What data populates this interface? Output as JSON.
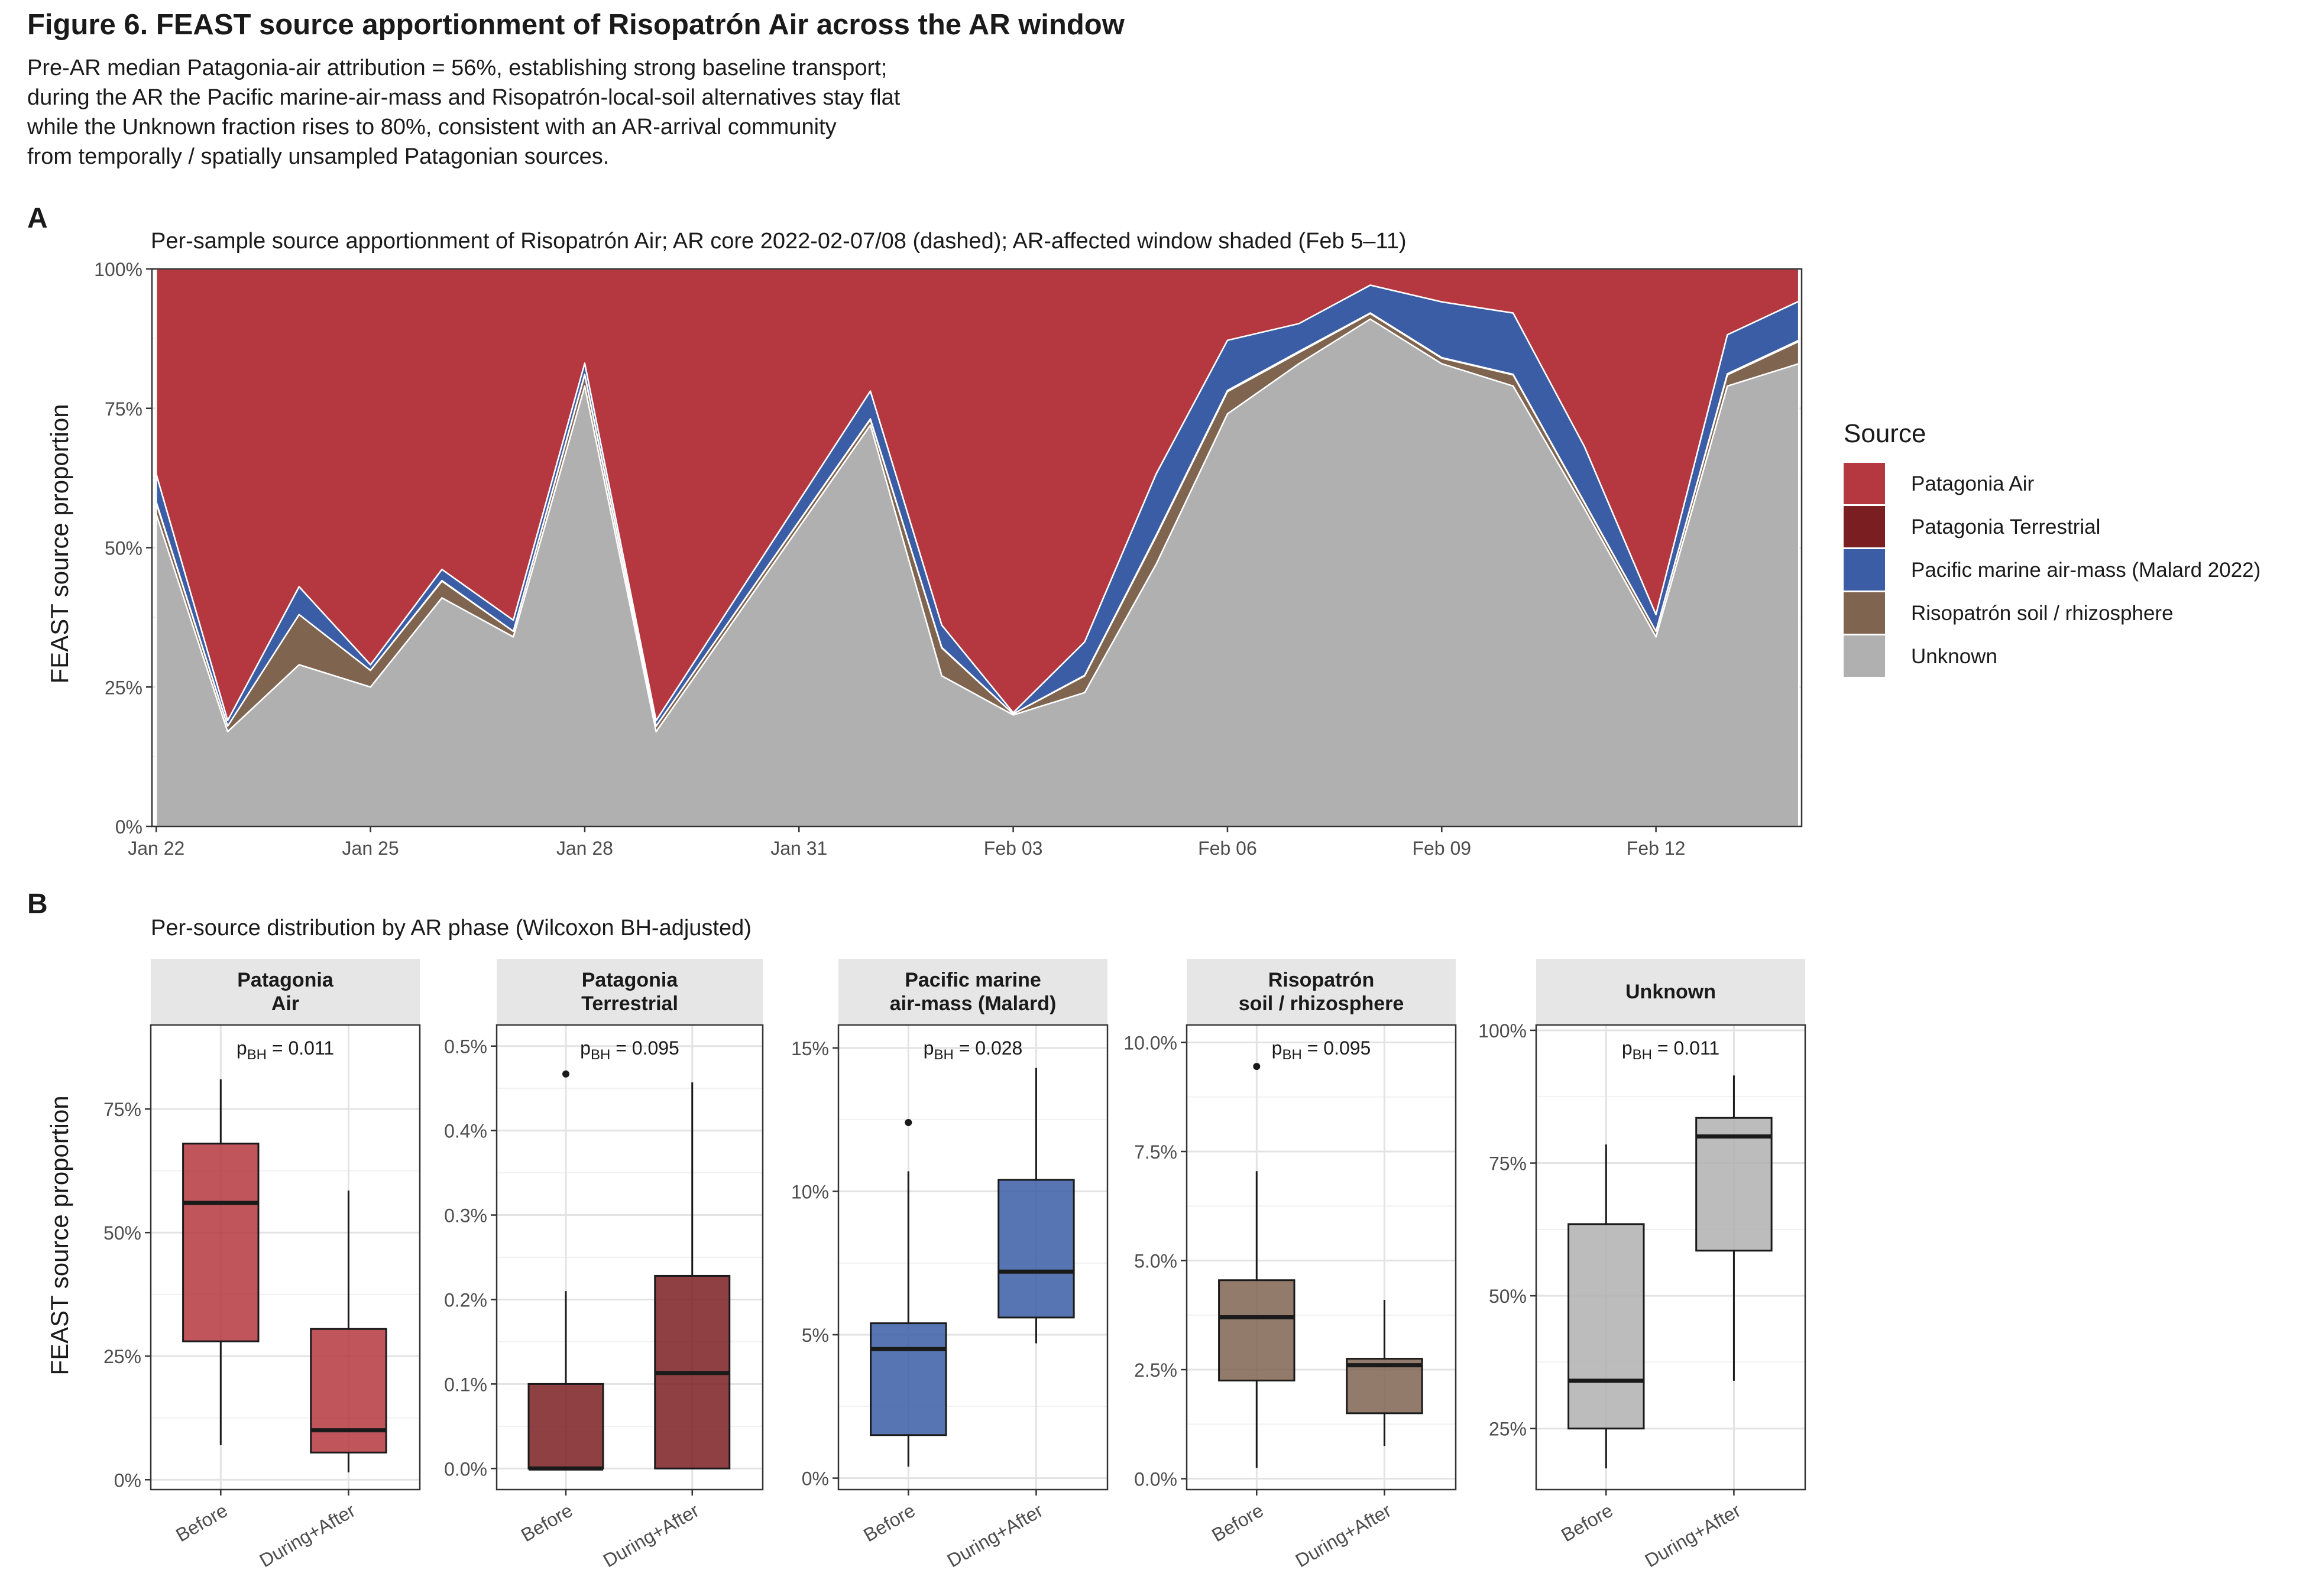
{
  "figure": {
    "title": "Figure 6. FEAST source apportionment of Risopatrón Air across the AR window",
    "caption_lines": [
      "Pre-AR median Patagonia-air attribution = 56%, establishing strong baseline transport;",
      "during the AR the Pacific marine-air-mass and Risopatrón-local-soil alternatives stay flat",
      "while the Unknown fraction rises to 80%, consistent with an AR-arrival community",
      "from temporally / spatially unsampled Patagonian sources."
    ]
  },
  "panel_a": {
    "letter": "A",
    "subtitle": "Per-sample source apportionment of Risopatrón Air; AR core 2022-02-07/08 (dashed); AR-affected window shaded (Feb 5–11)",
    "ylabel": "FEAST source proportion"
  },
  "panel_b": {
    "letter": "B",
    "subtitle": "Per-source distribution by AR phase (Wilcoxon BH-adjusted)",
    "ylabel": "FEAST source proportion"
  },
  "legend": {
    "title": "Source",
    "position": "right",
    "items": [
      {
        "label": "Patagonia Air",
        "color": "#B5373F"
      },
      {
        "label": "Patagonia Terrestrial",
        "color": "#7B1E22"
      },
      {
        "label": "Pacific marine air-mass (Malard 2022)",
        "color": "#3A5DA5"
      },
      {
        "label": "Risopatrón soil / rhizosphere",
        "color": "#7F6450"
      },
      {
        "label": "Unknown",
        "color": "#B0B0B0"
      }
    ]
  },
  "chart_data": [
    {
      "type": "area",
      "stacked": true,
      "x_tick_labels": [
        "Jan 22",
        "Jan 25",
        "Jan 28",
        "Jan 31",
        "Feb 03",
        "Feb 06",
        "Feb 09",
        "Feb 12"
      ],
      "x_tick_dates": [
        "2022-01-22",
        "2022-01-25",
        "2022-01-28",
        "2022-01-31",
        "2022-02-03",
        "2022-02-06",
        "2022-02-09",
        "2022-02-12"
      ],
      "xlim": [
        "2022-01-22",
        "2022-02-14"
      ],
      "x": [
        "2022-01-22",
        "2022-01-23",
        "2022-01-24",
        "2022-01-25",
        "2022-01-26",
        "2022-01-27",
        "2022-01-28",
        "2022-01-29",
        "2022-02-01",
        "2022-02-02",
        "2022-02-03",
        "2022-02-04",
        "2022-02-05",
        "2022-02-06",
        "2022-02-07",
        "2022-02-08",
        "2022-02-09",
        "2022-02-10",
        "2022-02-11",
        "2022-02-12",
        "2022-02-13",
        "2022-02-14"
      ],
      "ylim": [
        0,
        1
      ],
      "y_tick_labels": [
        "0%",
        "25%",
        "50%",
        "75%",
        "100%"
      ],
      "y_ticks": [
        0,
        0.25,
        0.5,
        0.75,
        1.0
      ],
      "grid": true,
      "series": [
        {
          "name": "Unknown",
          "color": "#B0B0B0",
          "values": [
            0.56,
            0.17,
            0.29,
            0.25,
            0.41,
            0.34,
            0.79,
            0.17,
            0.72,
            0.27,
            0.2,
            0.24,
            0.47,
            0.74,
            0.83,
            0.91,
            0.83,
            0.79,
            0.57,
            0.34,
            0.79,
            0.83
          ]
        },
        {
          "name": "Risopatrón soil / rhizosphere",
          "color": "#7F6450",
          "values": [
            0.02,
            0.01,
            0.09,
            0.03,
            0.03,
            0.01,
            0.02,
            0.01,
            0.01,
            0.05,
            0.002,
            0.03,
            0.05,
            0.04,
            0.02,
            0.01,
            0.01,
            0.02,
            0.01,
            0.01,
            0.02,
            0.04
          ]
        },
        {
          "name": "Patagonia Terrestrial",
          "color": "#7B1E22",
          "values": [
            0.002,
            0.0,
            0.0,
            0.0,
            0.001,
            0.0,
            0.001,
            0.0,
            0.001,
            0.001,
            0.0,
            0.001,
            0.002,
            0.002,
            0.002,
            0.001,
            0.001,
            0.001,
            0.001,
            0.0,
            0.002,
            0.002
          ]
        },
        {
          "name": "Pacific marine air-mass (Malard 2022)",
          "color": "#3A5DA5",
          "values": [
            0.05,
            0.01,
            0.05,
            0.01,
            0.02,
            0.02,
            0.02,
            0.01,
            0.05,
            0.04,
            0.002,
            0.06,
            0.11,
            0.09,
            0.05,
            0.05,
            0.1,
            0.11,
            0.1,
            0.03,
            0.07,
            0.07
          ]
        },
        {
          "name": "Patagonia Air",
          "color": "#B5373F",
          "values": [
            0.368,
            0.81,
            0.57,
            0.71,
            0.539,
            0.63,
            0.169,
            0.81,
            0.219,
            0.639,
            0.796,
            0.669,
            0.368,
            0.128,
            0.098,
            0.029,
            0.059,
            0.079,
            0.319,
            0.62,
            0.118,
            0.058
          ]
        }
      ]
    },
    {
      "type": "box",
      "name": "Patagonia\nAir",
      "facet_lines": [
        "Patagonia",
        "Air"
      ],
      "color": "#B5373F",
      "ylim": [
        -0.02,
        0.92
      ],
      "y_ticks": [
        0,
        0.25,
        0.5,
        0.75
      ],
      "y_tick_labels": [
        "0%",
        "25%",
        "50%",
        "75%"
      ],
      "categories": [
        "Before",
        "During+After"
      ],
      "boxes": [
        {
          "whisker_low": 0.07,
          "q1": 0.28,
          "median": 0.56,
          "q3": 0.68,
          "whisker_high": 0.81,
          "outliers": []
        },
        {
          "whisker_low": 0.015,
          "q1": 0.055,
          "median": 0.1,
          "q3": 0.305,
          "whisker_high": 0.585,
          "outliers": []
        }
      ],
      "p_label": "p",
      "p_sub": "BH",
      "p_value": "= 0.011"
    },
    {
      "type": "box",
      "name": "Patagonia\nTerrestrial",
      "facet_lines": [
        "Patagonia",
        "Terrestrial"
      ],
      "color": "#7B1E22",
      "ylim": [
        -0.00025,
        0.00525
      ],
      "y_ticks": [
        0,
        0.001,
        0.002,
        0.003,
        0.004,
        0.005
      ],
      "y_tick_labels": [
        "0.0%",
        "0.1%",
        "0.2%",
        "0.3%",
        "0.4%",
        "0.5%"
      ],
      "categories": [
        "Before",
        "During+After"
      ],
      "boxes": [
        {
          "whisker_low": 0.0,
          "q1": 0.0,
          "median": 0.0,
          "q3": 0.001,
          "whisker_high": 0.0021,
          "outliers": [
            0.00467
          ]
        },
        {
          "whisker_low": 0.0,
          "q1": 0.0,
          "median": 0.00113,
          "q3": 0.00228,
          "whisker_high": 0.00457,
          "outliers": []
        }
      ],
      "p_label": "p",
      "p_sub": "BH",
      "p_value": "= 0.095"
    },
    {
      "type": "box",
      "name": "Pacific marine\nair-mass (Malard)",
      "facet_lines": [
        "Pacific marine",
        "air-mass (Malard)"
      ],
      "color": "#3A5DA5",
      "ylim": [
        -0.004,
        0.158
      ],
      "y_ticks": [
        0,
        0.05,
        0.1,
        0.15
      ],
      "y_tick_labels": [
        "0%",
        "5%",
        "10%",
        "15%"
      ],
      "categories": [
        "Before",
        "During+After"
      ],
      "boxes": [
        {
          "whisker_low": 0.004,
          "q1": 0.015,
          "median": 0.045,
          "q3": 0.054,
          "whisker_high": 0.107,
          "outliers": [
            0.124
          ]
        },
        {
          "whisker_low": 0.047,
          "q1": 0.056,
          "median": 0.072,
          "q3": 0.104,
          "whisker_high": 0.143,
          "outliers": []
        }
      ],
      "p_label": "p",
      "p_sub": "BH",
      "p_value": "= 0.028"
    },
    {
      "type": "box",
      "name": "Risopatrón\nsoil / rhizosphere",
      "facet_lines": [
        "Risopatrón",
        "soil / rhizosphere"
      ],
      "color": "#7F6450",
      "ylim": [
        -0.0025,
        0.104
      ],
      "y_ticks": [
        0,
        0.025,
        0.05,
        0.075,
        0.1
      ],
      "y_tick_labels": [
        "0.0%",
        "2.5%",
        "5.0%",
        "7.5%",
        "10.0%"
      ],
      "categories": [
        "Before",
        "During+After"
      ],
      "boxes": [
        {
          "whisker_low": 0.0025,
          "q1": 0.0225,
          "median": 0.037,
          "q3": 0.0455,
          "whisker_high": 0.0705,
          "outliers": [
            0.0945
          ]
        },
        {
          "whisker_low": 0.0075,
          "q1": 0.015,
          "median": 0.026,
          "q3": 0.0275,
          "whisker_high": 0.041,
          "outliers": []
        }
      ],
      "p_label": "p",
      "p_sub": "BH",
      "p_value": "= 0.095"
    },
    {
      "type": "box",
      "name": "Unknown",
      "facet_lines": [
        "Unknown"
      ],
      "color": "#B0B0B0",
      "ylim": [
        0.135,
        1.01
      ],
      "y_ticks": [
        0.25,
        0.5,
        0.75,
        1.0
      ],
      "y_tick_labels": [
        "25%",
        "50%",
        "75%",
        "100%"
      ],
      "categories": [
        "Before",
        "During+After"
      ],
      "boxes": [
        {
          "whisker_low": 0.175,
          "q1": 0.25,
          "median": 0.34,
          "q3": 0.635,
          "whisker_high": 0.785,
          "outliers": []
        },
        {
          "whisker_low": 0.34,
          "q1": 0.585,
          "median": 0.8,
          "q3": 0.835,
          "whisker_high": 0.915,
          "outliers": []
        }
      ],
      "p_label": "p",
      "p_sub": "BH",
      "p_value": "= 0.011"
    }
  ]
}
